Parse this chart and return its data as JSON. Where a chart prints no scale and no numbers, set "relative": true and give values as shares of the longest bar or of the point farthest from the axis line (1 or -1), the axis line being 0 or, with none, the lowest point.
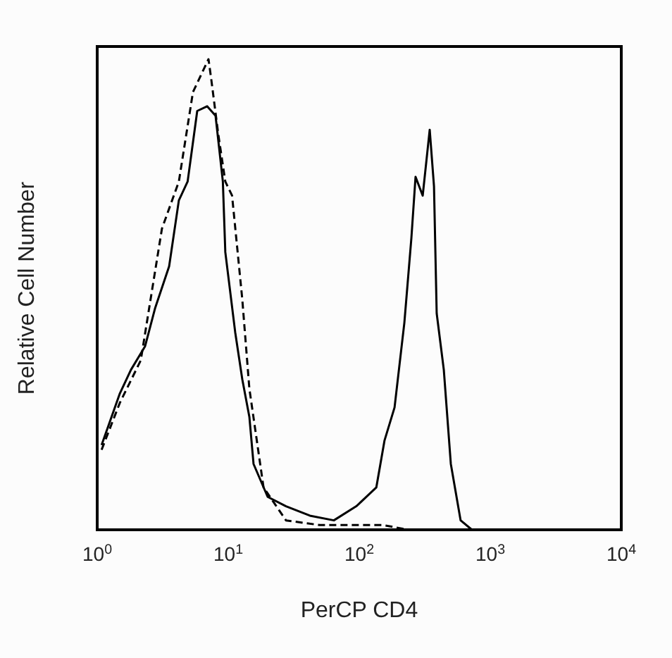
{
  "chart_data": {
    "type": "line",
    "xlabel": "PerCP CD4",
    "ylabel": "Relative Cell Number",
    "relative": true,
    "log": "x",
    "xlim": [
      1,
      10000
    ],
    "xticks": [
      {
        "value": 1,
        "label": "10$^{0}$"
      },
      {
        "value": 10,
        "label": "10$^{1}$"
      },
      {
        "value": 100,
        "label": "10$^{2}$"
      },
      {
        "value": 1000,
        "label": "10$^{3}$"
      },
      {
        "value": 10000,
        "label": "10$^{4}$"
      }
    ],
    "marker": "none",
    "series": [
      {
        "color": "#000000",
        "line_style": "solid",
        "x": [
          1.08,
          1.49,
          1.81,
          2.32,
          2.76,
          3.54,
          4.2,
          4.9,
          5.8,
          6.9,
          8.0,
          9.1,
          9.5,
          11.3,
          12.8,
          14.5,
          15.6,
          20,
          27.6,
          42,
          64,
          95,
          135,
          156,
          186,
          221,
          250,
          269,
          305,
          345,
          372,
          390,
          442,
          500,
          594,
          725,
          930,
          10000
        ],
        "values": [
          0.18,
          0.29,
          0.34,
          0.39,
          0.47,
          0.56,
          0.7,
          0.74,
          0.89,
          0.9,
          0.88,
          0.74,
          0.59,
          0.42,
          0.32,
          0.24,
          0.14,
          0.07,
          0.05,
          0.03,
          0.02,
          0.05,
          0.09,
          0.19,
          0.26,
          0.44,
          0.62,
          0.75,
          0.71,
          0.85,
          0.73,
          0.46,
          0.34,
          0.14,
          0.02,
          0,
          0,
          0
        ]
      },
      {
        "color": "#000000",
        "line_style": "dashed",
        "x": [
          1.08,
          1.49,
          2.15,
          3.12,
          4.2,
          5.38,
          7.07,
          7.4,
          8.4,
          9.5,
          10.7,
          12.8,
          14.5,
          18.6,
          27.6,
          50,
          113,
          152,
          238,
          10000
        ],
        "values": [
          0.17,
          0.27,
          0.36,
          0.64,
          0.74,
          0.93,
          1,
          0.96,
          0.84,
          0.74,
          0.71,
          0.49,
          0.3,
          0.09,
          0.02,
          0.01,
          0.01,
          0.01,
          0,
          0
        ]
      }
    ]
  }
}
